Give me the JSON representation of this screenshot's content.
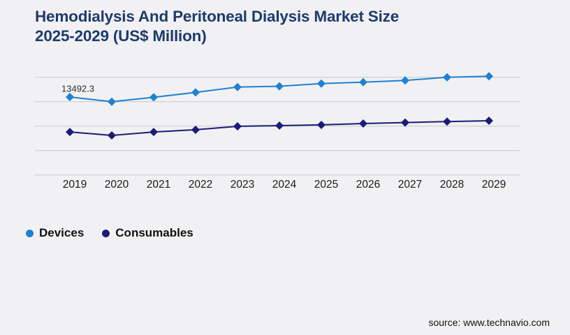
{
  "page": {
    "background": "#f1f1f3"
  },
  "header": {
    "title": "Hemodialysis And Peritoneal Dialysis Market Size 2025-2029 (US$ Million)",
    "title_line1": "Hemodialysis And Peritoneal Dialysis Market Size",
    "title_line2": "2025-2029 (US$ Million)",
    "color": "#1e3a6d"
  },
  "legend": {
    "items": [
      {
        "label": "Devices",
        "color": "#1e81d2"
      },
      {
        "label": "Consumables",
        "color": "#1b1b78"
      }
    ]
  },
  "source": {
    "label": "source: www.technavio.com"
  },
  "chart_data": {
    "type": "line",
    "title": "Hemodialysis And Peritoneal Dialysis Market Size 2025-2029 (US$ Million)",
    "units": "US$ Million",
    "categories": [
      "2019",
      "2020",
      "2021",
      "2022",
      "2023",
      "2024",
      "2025",
      "2026",
      "2027",
      "2028",
      "2029"
    ],
    "series": [
      {
        "name": "Devices",
        "color": "#1e81d2",
        "marker": "diamond",
        "values": [
          13492.3,
          13300,
          13480,
          13680,
          13900,
          13930,
          14040,
          14100,
          14170,
          14300,
          14340
        ]
      },
      {
        "name": "Consumables",
        "color": "#1b1b78",
        "marker": "diamond",
        "values": [
          12060,
          11920,
          12060,
          12150,
          12290,
          12320,
          12350,
          12405,
          12445,
          12485,
          12520
        ]
      }
    ],
    "annotation": {
      "series": "Devices",
      "category": "2019",
      "text": "13492.3"
    },
    "xlabel": "",
    "ylabel": "",
    "ylim": [
      10300,
      14300
    ],
    "grid": {
      "horizontal": true,
      "line_values": [
        10300,
        11300,
        12300,
        13300,
        14300
      ],
      "color": "#c9c9cb"
    },
    "y_axis_labels_visible": false,
    "legend_position": "bottom-left",
    "label_color": "#1a1a1a",
    "annotation_color": "#2e2e2e"
  }
}
